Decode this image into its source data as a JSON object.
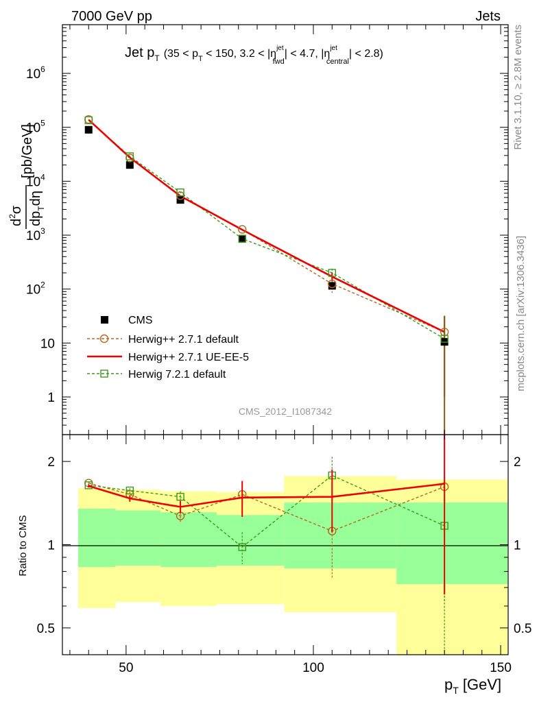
{
  "header": {
    "energy_label": "7000 GeV pp",
    "category_label": "Jets"
  },
  "side_labels": {
    "rivet": "Rivet 3.1.10, ≥ 2.8M events",
    "mcplots": "mcplots.cern.ch [arXiv:1306.3436]"
  },
  "analysis_id": "CMS_2012_I1087342",
  "colors": {
    "data": "#000000",
    "herwigpp_default": "#b8651b",
    "herwigpp_ueee5": "#ee0000",
    "herwig7": "#3a9a1a",
    "band_inner": "#99ff99",
    "band_outer": "#ffff99"
  },
  "chart_data": [
    {
      "type": "scatter",
      "title": "Jet pT (35 < pT < 150, 3.2 < |ηjet fwd| < 4.7, |ηjet central| < 2.8)",
      "title_parts": {
        "main": "Jet p",
        "sub_t": "T",
        "range": "(35 < p",
        "range_mid": " < 150, 3.2 < |η",
        "sup_jet": "jet",
        "sub_fwd": "fwd",
        "mid2": "| < 4.7, |η",
        "sub_central": "central",
        "end": "| < 2.8)"
      },
      "ylabel": "d²σ/dp_T dη [pb/GeV]",
      "ylabel_unit": "[pb/GeV]",
      "xlabel": "p_T [GeV]",
      "yscale": "log",
      "ylim": [
        0.2,
        8000000
      ],
      "xlim": [
        33,
        152
      ],
      "yticks": [
        {
          "value": 1,
          "label": "1",
          "exp": ""
        },
        {
          "value": 10,
          "label": "10",
          "exp": ""
        },
        {
          "value": 100,
          "label": "10",
          "exp": "2"
        },
        {
          "value": 1000,
          "label": "10",
          "exp": "3"
        },
        {
          "value": 10000,
          "label": "10",
          "exp": "4"
        },
        {
          "value": 100000,
          "label": "10",
          "exp": "5"
        },
        {
          "value": 1000000,
          "label": "10",
          "exp": "6"
        }
      ],
      "bin_edges": [
        35,
        45,
        57,
        72,
        90,
        120,
        150
      ],
      "series": [
        {
          "name": "CMS",
          "style": "data",
          "x": [
            40,
            51,
            64.5,
            81,
            105,
            135
          ],
          "y": [
            90000,
            20000,
            4500,
            850,
            115,
            10.5
          ],
          "yerr": [
            0,
            0,
            0,
            0,
            0,
            0
          ]
        },
        {
          "name": "Herwig++ 2.7.1 default",
          "style": "dashed-circle",
          "x": [
            40,
            51,
            64.5,
            81,
            105,
            135
          ],
          "y": [
            140000,
            27000,
            5400,
            1280,
            125,
            16
          ],
          "yerr": [
            0,
            0,
            0,
            0,
            40,
            15
          ]
        },
        {
          "name": "Herwig++ 2.7.1 UE-EE-5",
          "style": "solid",
          "x": [
            40,
            51,
            64.5,
            81,
            105,
            135
          ],
          "y": [
            138000,
            27500,
            5300,
            1260,
            170,
            16
          ],
          "yerr": [
            0,
            0,
            0,
            0,
            30,
            15
          ]
        },
        {
          "name": "Herwig 7.2.1 default",
          "style": "dashed-square",
          "x": [
            40,
            51,
            64.5,
            81,
            105,
            135
          ],
          "y": [
            135000,
            29000,
            6200,
            860,
            200,
            12
          ],
          "yerr": [
            0,
            0,
            0,
            0,
            40,
            10
          ]
        }
      ],
      "legend_position": "bottom-left"
    },
    {
      "type": "scatter",
      "ylabel": "Ratio to CMS",
      "yscale": "log",
      "ylim": [
        0.4,
        2.5
      ],
      "yticks": [
        {
          "value": 0.5,
          "label": "0.5"
        },
        {
          "value": 1,
          "label": "1"
        },
        {
          "value": 2,
          "label": "2"
        }
      ],
      "xticks": [
        {
          "value": 50,
          "label": "50"
        },
        {
          "value": 100,
          "label": "100"
        },
        {
          "value": 150,
          "label": "150"
        }
      ],
      "bands": {
        "edges": [
          35,
          45,
          57,
          72,
          90,
          120,
          150
        ],
        "outer_low": [
          0.59,
          0.62,
          0.6,
          0.61,
          0.57,
          0.4
        ],
        "outer_high": [
          1.6,
          1.58,
          1.56,
          1.55,
          1.77,
          1.72
        ],
        "inner_low": [
          0.83,
          0.84,
          0.83,
          0.84,
          0.82,
          0.72
        ],
        "inner_high": [
          1.35,
          1.33,
          1.31,
          1.28,
          1.42,
          1.42
        ]
      },
      "series": [
        {
          "name": "Herwig++ 2.7.1 default",
          "x": [
            40,
            51,
            64.5,
            81,
            105,
            135
          ],
          "y": [
            1.67,
            1.52,
            1.27,
            1.52,
            1.12,
            1.62
          ],
          "yerr": [
            0.02,
            0.03,
            0.07,
            0.18,
            0.37,
            1.0
          ]
        },
        {
          "name": "Herwig++ 2.7.1 UE-EE-5",
          "x": [
            40,
            51,
            64.5,
            81,
            105,
            135
          ],
          "y": [
            1.63,
            1.47,
            1.37,
            1.48,
            1.49,
            1.66
          ],
          "yerr": [
            0.02,
            0.04,
            0.07,
            0.22,
            0.38,
            1.0
          ]
        },
        {
          "name": "Herwig 7.2.1 default",
          "x": [
            40,
            51,
            64.5,
            81,
            105,
            135
          ],
          "y": [
            1.64,
            1.57,
            1.49,
            0.98,
            1.78,
            1.17
          ],
          "yerr": [
            0.02,
            0.03,
            0.07,
            0.13,
            0.3,
            1.0
          ]
        }
      ]
    }
  ]
}
